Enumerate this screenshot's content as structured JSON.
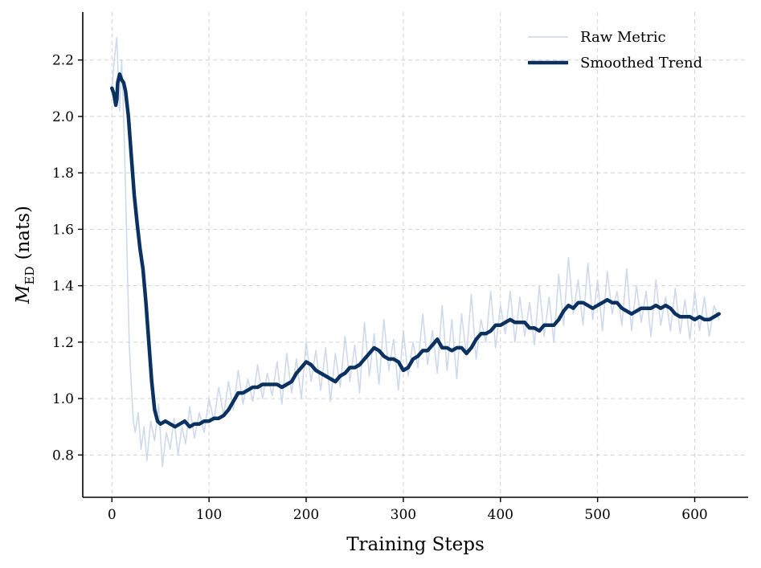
{
  "chart_data": {
    "type": "line",
    "xlabel": "Training Steps",
    "ylabel_main": "M",
    "ylabel_sub": "ED",
    "ylabel_unit": "(nats)",
    "xlim": [
      -30,
      655
    ],
    "ylim": [
      0.65,
      2.37
    ],
    "xticks": [
      0,
      100,
      200,
      300,
      400,
      500,
      600
    ],
    "yticks": [
      0.8,
      1.0,
      1.2,
      1.4,
      1.6,
      1.8,
      2.0,
      2.2
    ],
    "xtick_labels": [
      "0",
      "100",
      "200",
      "300",
      "400",
      "500",
      "600"
    ],
    "ytick_labels": [
      "0.8",
      "1.0",
      "1.2",
      "1.4",
      "1.6",
      "1.8",
      "2.0",
      "2.2"
    ],
    "grid": true,
    "legend_position": "top-right",
    "series": [
      {
        "name": "Raw Metric",
        "color": "#c9d6ea",
        "x": [
          0,
          3,
          5,
          8,
          10,
          12,
          14,
          16,
          18,
          20,
          22,
          24,
          27,
          30,
          33,
          36,
          40,
          44,
          48,
          52,
          56,
          60,
          64,
          68,
          72,
          76,
          80,
          85,
          90,
          95,
          100,
          105,
          110,
          115,
          120,
          125,
          130,
          135,
          140,
          145,
          150,
          155,
          160,
          165,
          170,
          175,
          180,
          185,
          190,
          195,
          200,
          205,
          210,
          215,
          220,
          225,
          230,
          235,
          240,
          245,
          250,
          255,
          260,
          265,
          270,
          275,
          280,
          285,
          290,
          295,
          300,
          305,
          310,
          315,
          320,
          325,
          330,
          335,
          340,
          345,
          350,
          355,
          360,
          365,
          370,
          375,
          380,
          385,
          390,
          395,
          400,
          405,
          410,
          415,
          420,
          425,
          430,
          435,
          440,
          445,
          450,
          455,
          460,
          465,
          470,
          475,
          480,
          485,
          490,
          495,
          500,
          505,
          510,
          515,
          520,
          525,
          530,
          535,
          540,
          545,
          550,
          555,
          560,
          565,
          570,
          575,
          580,
          585,
          590,
          595,
          600,
          605,
          610,
          615,
          620,
          625
        ],
        "y": [
          2.1,
          2.22,
          2.28,
          2.02,
          2.2,
          2.0,
          1.75,
          1.45,
          1.18,
          1.05,
          0.92,
          0.88,
          0.95,
          0.82,
          0.9,
          0.78,
          0.92,
          0.85,
          0.98,
          0.76,
          0.88,
          0.82,
          0.93,
          0.8,
          0.9,
          0.84,
          0.97,
          0.86,
          0.95,
          0.88,
          1.0,
          0.92,
          1.04,
          0.94,
          1.06,
          0.96,
          1.1,
          0.98,
          1.07,
          0.99,
          1.12,
          1.0,
          1.09,
          1.01,
          1.13,
          0.98,
          1.16,
          1.02,
          1.14,
          1.0,
          1.2,
          1.06,
          1.17,
          1.03,
          1.18,
          0.99,
          1.16,
          1.04,
          1.22,
          1.06,
          1.19,
          1.02,
          1.27,
          1.08,
          1.23,
          1.05,
          1.28,
          1.1,
          1.21,
          1.03,
          1.24,
          1.08,
          1.2,
          1.11,
          1.3,
          1.12,
          1.24,
          1.09,
          1.33,
          1.1,
          1.28,
          1.07,
          1.3,
          1.15,
          1.37,
          1.14,
          1.28,
          1.2,
          1.38,
          1.18,
          1.33,
          1.23,
          1.38,
          1.2,
          1.36,
          1.22,
          1.34,
          1.19,
          1.4,
          1.22,
          1.36,
          1.2,
          1.44,
          1.26,
          1.5,
          1.3,
          1.42,
          1.26,
          1.48,
          1.28,
          1.42,
          1.24,
          1.45,
          1.3,
          1.38,
          1.26,
          1.46,
          1.24,
          1.4,
          1.27,
          1.38,
          1.22,
          1.42,
          1.26,
          1.36,
          1.24,
          1.39,
          1.23,
          1.35,
          1.21,
          1.38,
          1.24,
          1.36,
          1.22,
          1.33,
          1.28
        ]
      },
      {
        "name": "Smoothed Trend",
        "color": "#0b3160",
        "x": [
          0,
          2,
          4,
          5,
          6,
          8,
          10,
          12,
          14,
          17,
          20,
          23,
          26,
          29,
          32,
          35,
          38,
          41,
          44,
          47,
          50,
          55,
          60,
          65,
          70,
          75,
          80,
          85,
          90,
          95,
          100,
          105,
          110,
          115,
          120,
          125,
          130,
          135,
          140,
          145,
          150,
          155,
          160,
          165,
          170,
          175,
          180,
          185,
          190,
          195,
          200,
          205,
          210,
          215,
          220,
          225,
          230,
          235,
          240,
          245,
          250,
          255,
          260,
          265,
          270,
          275,
          280,
          285,
          290,
          295,
          300,
          305,
          310,
          315,
          320,
          325,
          330,
          335,
          340,
          345,
          350,
          355,
          360,
          365,
          370,
          375,
          380,
          385,
          390,
          395,
          400,
          405,
          410,
          415,
          420,
          425,
          430,
          435,
          440,
          445,
          450,
          455,
          460,
          465,
          470,
          475,
          480,
          485,
          490,
          495,
          500,
          505,
          510,
          515,
          520,
          525,
          530,
          535,
          540,
          545,
          550,
          555,
          560,
          565,
          570,
          575,
          580,
          585,
          590,
          595,
          600,
          605,
          610,
          615,
          620,
          625
        ],
        "y": [
          2.1,
          2.08,
          2.04,
          2.06,
          2.12,
          2.15,
          2.13,
          2.12,
          2.09,
          2.0,
          1.86,
          1.72,
          1.62,
          1.53,
          1.46,
          1.34,
          1.2,
          1.06,
          0.96,
          0.92,
          0.91,
          0.92,
          0.91,
          0.9,
          0.91,
          0.92,
          0.9,
          0.91,
          0.91,
          0.92,
          0.92,
          0.93,
          0.93,
          0.94,
          0.96,
          0.99,
          1.02,
          1.02,
          1.03,
          1.04,
          1.04,
          1.05,
          1.05,
          1.05,
          1.05,
          1.04,
          1.05,
          1.06,
          1.09,
          1.11,
          1.13,
          1.12,
          1.1,
          1.09,
          1.08,
          1.07,
          1.06,
          1.08,
          1.09,
          1.11,
          1.11,
          1.12,
          1.14,
          1.16,
          1.18,
          1.17,
          1.15,
          1.14,
          1.14,
          1.13,
          1.1,
          1.11,
          1.14,
          1.15,
          1.17,
          1.17,
          1.19,
          1.21,
          1.18,
          1.18,
          1.17,
          1.18,
          1.18,
          1.16,
          1.18,
          1.21,
          1.23,
          1.23,
          1.24,
          1.26,
          1.26,
          1.27,
          1.28,
          1.27,
          1.27,
          1.27,
          1.25,
          1.25,
          1.24,
          1.26,
          1.26,
          1.26,
          1.28,
          1.31,
          1.33,
          1.32,
          1.34,
          1.34,
          1.33,
          1.32,
          1.33,
          1.34,
          1.35,
          1.34,
          1.34,
          1.32,
          1.31,
          1.3,
          1.31,
          1.32,
          1.32,
          1.32,
          1.33,
          1.32,
          1.33,
          1.32,
          1.3,
          1.29,
          1.29,
          1.29,
          1.28,
          1.29,
          1.28,
          1.28,
          1.29,
          1.3
        ]
      }
    ]
  }
}
